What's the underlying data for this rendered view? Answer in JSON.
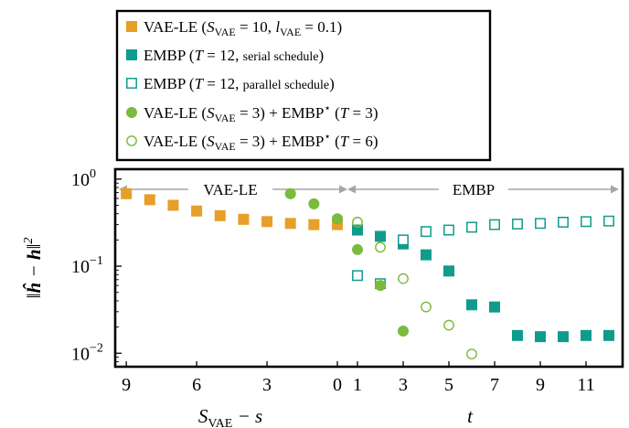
{
  "chart_data": {
    "type": "scatter",
    "ylabel": "‖ĥ − h‖²",
    "yscale": "log",
    "ylim": [
      0.007,
      1.3
    ],
    "y_ticks": [
      {
        "value": 1,
        "label": "10",
        "exp": "0"
      },
      {
        "value": 0.1,
        "label": "10",
        "exp": "−1"
      },
      {
        "value": 0.01,
        "label": "10",
        "exp": "−2"
      }
    ],
    "phases": [
      {
        "label": "VAE-LE",
        "xlabel": "S_VAE − s",
        "xlabel_main": "S",
        "xlabel_sub": "VAE",
        "xlabel_rest": " − s",
        "ticks": [
          "9",
          "6",
          "3",
          "0"
        ]
      },
      {
        "label": "EMBP",
        "xlabel": "t",
        "ticks": [
          "1",
          "3",
          "5",
          "7",
          "9",
          "11"
        ]
      }
    ],
    "legend_placement": "top-center",
    "legend": [
      "VAE-LE (S_VAE = 10, l_VAE = 0.1)",
      "EMBP (T = 12, serial schedule)",
      "EMBP (T = 12, parallel schedule)",
      "VAE-LE (S_VAE = 3) + EMBP* (T = 3)",
      "VAE-LE (S_VAE = 3) + EMBP* (T = 6)"
    ],
    "series": [
      {
        "legend_index": 0,
        "marker": "square-filled",
        "color": "#e69f28",
        "phase": "VAE-LE",
        "x": [
          9,
          8,
          7,
          6,
          5,
          4,
          3,
          2,
          1,
          0
        ],
        "y": [
          0.68,
          0.58,
          0.5,
          0.43,
          0.38,
          0.345,
          0.325,
          0.31,
          0.3,
          0.3
        ]
      },
      {
        "legend_index": 1,
        "marker": "square-filled",
        "color": "#109c8c",
        "phase": "EMBP",
        "x": [
          1,
          2,
          3,
          4,
          5,
          6,
          7,
          8,
          9,
          10,
          11,
          12
        ],
        "y": [
          0.26,
          0.22,
          0.18,
          0.135,
          0.088,
          0.036,
          0.034,
          0.016,
          0.0155,
          0.0155,
          0.016,
          0.016
        ]
      },
      {
        "legend_index": 2,
        "marker": "square-open",
        "color": "#109c8c",
        "phase": "EMBP",
        "x": [
          1,
          2,
          3,
          4,
          5,
          6,
          7,
          8,
          9,
          10,
          11,
          12
        ],
        "y": [
          0.078,
          0.063,
          0.2,
          0.25,
          0.26,
          0.28,
          0.3,
          0.305,
          0.31,
          0.32,
          0.325,
          0.33
        ]
      },
      {
        "legend_index": 3,
        "marker": "circle-filled",
        "color": "#7aba3c",
        "phase": "mixed",
        "points": [
          {
            "phase": "VAE-LE",
            "x": 2,
            "y": 0.68
          },
          {
            "phase": "VAE-LE",
            "x": 1,
            "y": 0.52
          },
          {
            "phase": "VAE-LE",
            "x": 0,
            "y": 0.35
          },
          {
            "phase": "EMBP",
            "x": 1,
            "y": 0.155
          },
          {
            "phase": "EMBP",
            "x": 2,
            "y": 0.06
          },
          {
            "phase": "EMBP",
            "x": 3,
            "y": 0.018
          }
        ]
      },
      {
        "legend_index": 4,
        "marker": "circle-open",
        "color": "#7aba3c",
        "phase": "mixed",
        "points": [
          {
            "phase": "VAE-LE",
            "x": 2,
            "y": 0.68
          },
          {
            "phase": "VAE-LE",
            "x": 1,
            "y": 0.52
          },
          {
            "phase": "VAE-LE",
            "x": 0,
            "y": 0.35
          },
          {
            "phase": "EMBP",
            "x": 1,
            "y": 0.32
          },
          {
            "phase": "EMBP",
            "x": 2,
            "y": 0.165
          },
          {
            "phase": "EMBP",
            "x": 3,
            "y": 0.072
          },
          {
            "phase": "EMBP",
            "x": 4,
            "y": 0.034
          },
          {
            "phase": "EMBP",
            "x": 5,
            "y": 0.021
          },
          {
            "phase": "EMBP",
            "x": 6,
            "y": 0.0098
          }
        ]
      }
    ]
  }
}
